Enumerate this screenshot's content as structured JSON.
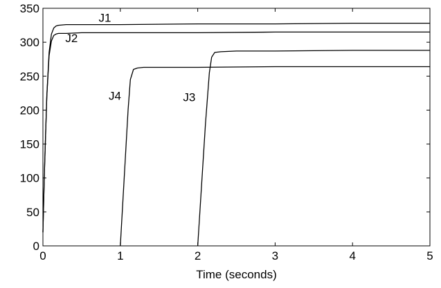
{
  "chart_data": {
    "type": "line",
    "title": "",
    "xlabel": "Time (seconds)",
    "ylabel": "",
    "xlim": [
      0,
      5
    ],
    "ylim": [
      0,
      350
    ],
    "xticks": [
      "0",
      "1",
      "2",
      "3",
      "4",
      "5"
    ],
    "yticks": [
      "0",
      "50",
      "100",
      "150",
      "200",
      "250",
      "300",
      "350"
    ],
    "grid": false,
    "legend": "none",
    "line_color": "#000000",
    "series": [
      {
        "name": "J1",
        "x": [
          0.0,
          0.02,
          0.05,
          0.08,
          0.11,
          0.14,
          0.17,
          0.2,
          0.3,
          0.5,
          1.0,
          2.0,
          3.0,
          4.0,
          5.0
        ],
        "y": [
          20,
          110,
          220,
          285,
          312,
          321,
          324,
          325,
          326,
          326,
          326,
          327,
          327,
          328,
          328
        ]
      },
      {
        "name": "J2",
        "x": [
          0.0,
          0.02,
          0.05,
          0.08,
          0.11,
          0.14,
          0.17,
          0.2,
          0.3,
          0.5,
          1.0,
          2.0,
          3.0,
          4.0,
          5.0
        ],
        "y": [
          20,
          110,
          220,
          280,
          302,
          310,
          312,
          313,
          313,
          314,
          314,
          314,
          315,
          315,
          315
        ]
      },
      {
        "name": "J3",
        "x": [
          2.0,
          2.05,
          2.1,
          2.15,
          2.18,
          2.22,
          2.3,
          2.5,
          3.0,
          4.0,
          5.0
        ],
        "y": [
          0,
          90,
          180,
          255,
          278,
          285,
          286,
          287,
          287,
          288,
          288
        ]
      },
      {
        "name": "J4",
        "x": [
          1.0,
          1.05,
          1.1,
          1.13,
          1.17,
          1.22,
          1.3,
          1.5,
          2.0,
          3.0,
          4.0,
          5.0
        ],
        "y": [
          0,
          100,
          200,
          245,
          260,
          262,
          263,
          263,
          263,
          264,
          264,
          264
        ]
      }
    ],
    "annotations": [
      {
        "text": "J1",
        "x": 0.8,
        "y": 330
      },
      {
        "text": "J2",
        "x": 0.37,
        "y": 300
      },
      {
        "text": "J4",
        "x": 0.93,
        "y": 215
      },
      {
        "text": "J3",
        "x": 1.89,
        "y": 213
      }
    ]
  }
}
